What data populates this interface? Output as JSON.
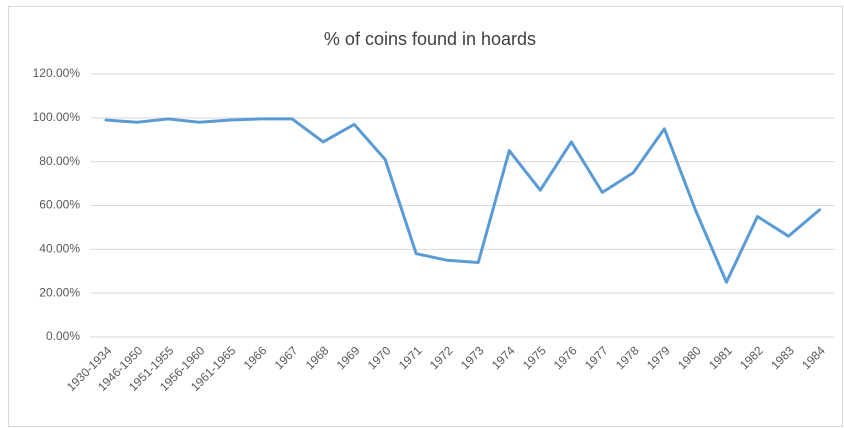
{
  "chart_data": {
    "type": "line",
    "title": "% of coins found in hoards",
    "categories": [
      "1930-1934",
      "1946-1950",
      "1951-1955",
      "1956-1960",
      "1961-1965",
      "1966",
      "1967",
      "1968",
      "1969",
      "1970",
      "1971",
      "1972",
      "1973",
      "1974",
      "1975",
      "1976",
      "1977",
      "1978",
      "1979",
      "1980",
      "1981",
      "1982",
      "1983",
      "1984"
    ],
    "values": [
      99,
      98,
      99.5,
      98,
      99,
      99.5,
      99.5,
      89,
      97,
      81,
      38,
      35,
      34,
      85,
      67,
      89,
      66,
      75,
      95,
      58,
      25,
      55,
      46,
      58
    ],
    "color": "#5b9bd5",
    "ylim": [
      0,
      120
    ],
    "yticks": [
      {
        "value": 0,
        "label": "0.00%"
      },
      {
        "value": 20,
        "label": "20.00%"
      },
      {
        "value": 40,
        "label": "40.00%"
      },
      {
        "value": 60,
        "label": "60.00%"
      },
      {
        "value": 80,
        "label": "80.00%"
      },
      {
        "value": 100,
        "label": "100.00%"
      },
      {
        "value": 120,
        "label": "120.00%"
      }
    ],
    "grid": true
  }
}
